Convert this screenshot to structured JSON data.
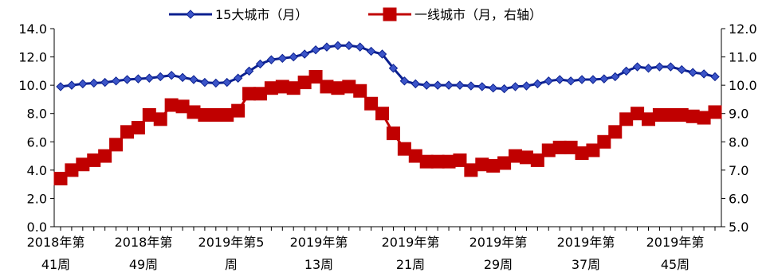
{
  "chart_data": {
    "type": "line",
    "legend_position": "top",
    "grid": false,
    "legend": [
      {
        "label": "15大城市（月）",
        "color": "#0a1f8f",
        "marker": "diamond"
      },
      {
        "label": "一线城市（月，右轴）",
        "color": "#c00000",
        "marker": "square"
      }
    ],
    "x_tick_labels": [
      [
        "2018年第",
        "41周"
      ],
      [
        "2018年第",
        "49周"
      ],
      [
        "2019年第5",
        "周"
      ],
      [
        "2019年第",
        "13周"
      ],
      [
        "2019年第",
        "21周"
      ],
      [
        "2019年第",
        "29周"
      ],
      [
        "2019年第",
        "37周"
      ],
      [
        "2019年第",
        "45周"
      ]
    ],
    "y_left": {
      "min": 0,
      "max": 14,
      "step": 2,
      "labels": [
        "0.0",
        "2.0",
        "4.0",
        "6.0",
        "8.0",
        "10.0",
        "12.0",
        "14.0"
      ]
    },
    "y_right": {
      "min": 5,
      "max": 12,
      "step": 1,
      "labels": [
        "5.0",
        "6.0",
        "7.0",
        "8.0",
        "9.0",
        "10.0",
        "11.0",
        "12.0"
      ]
    },
    "series": [
      {
        "name": "15大城市（月）",
        "axis": "left",
        "color": "#0a1f8f",
        "values": [
          9.9,
          10.0,
          10.1,
          10.15,
          10.2,
          10.3,
          10.4,
          10.45,
          10.5,
          10.6,
          10.7,
          10.55,
          10.4,
          10.2,
          10.15,
          10.2,
          10.5,
          11.0,
          11.5,
          11.8,
          11.9,
          12.0,
          12.2,
          12.5,
          12.7,
          12.8,
          12.8,
          12.7,
          12.4,
          12.2,
          11.2,
          10.3,
          10.1,
          10.0,
          10.0,
          10.0,
          10.0,
          9.95,
          9.9,
          9.8,
          9.75,
          9.9,
          9.95,
          10.1,
          10.3,
          10.4,
          10.3,
          10.4,
          10.4,
          10.45,
          10.6,
          11.0,
          11.3,
          11.2,
          11.3,
          11.3,
          11.1,
          10.9,
          10.8,
          10.6
        ]
      },
      {
        "name": "一线城市（月，右轴）",
        "axis": "right",
        "color": "#c00000",
        "values": [
          6.7,
          7.0,
          7.2,
          7.35,
          7.5,
          7.9,
          8.35,
          8.5,
          8.95,
          8.8,
          9.3,
          9.25,
          9.05,
          8.95,
          8.95,
          8.95,
          9.1,
          9.7,
          9.7,
          9.9,
          9.95,
          9.9,
          10.1,
          10.3,
          9.95,
          9.9,
          9.95,
          9.8,
          9.35,
          9.0,
          8.3,
          7.75,
          7.5,
          7.3,
          7.3,
          7.3,
          7.35,
          7.0,
          7.2,
          7.15,
          7.25,
          7.5,
          7.45,
          7.35,
          7.7,
          7.8,
          7.8,
          7.6,
          7.7,
          8.0,
          8.35,
          8.8,
          9.0,
          8.8,
          8.95,
          8.95,
          8.95,
          8.9,
          8.85,
          9.05
        ]
      }
    ]
  }
}
